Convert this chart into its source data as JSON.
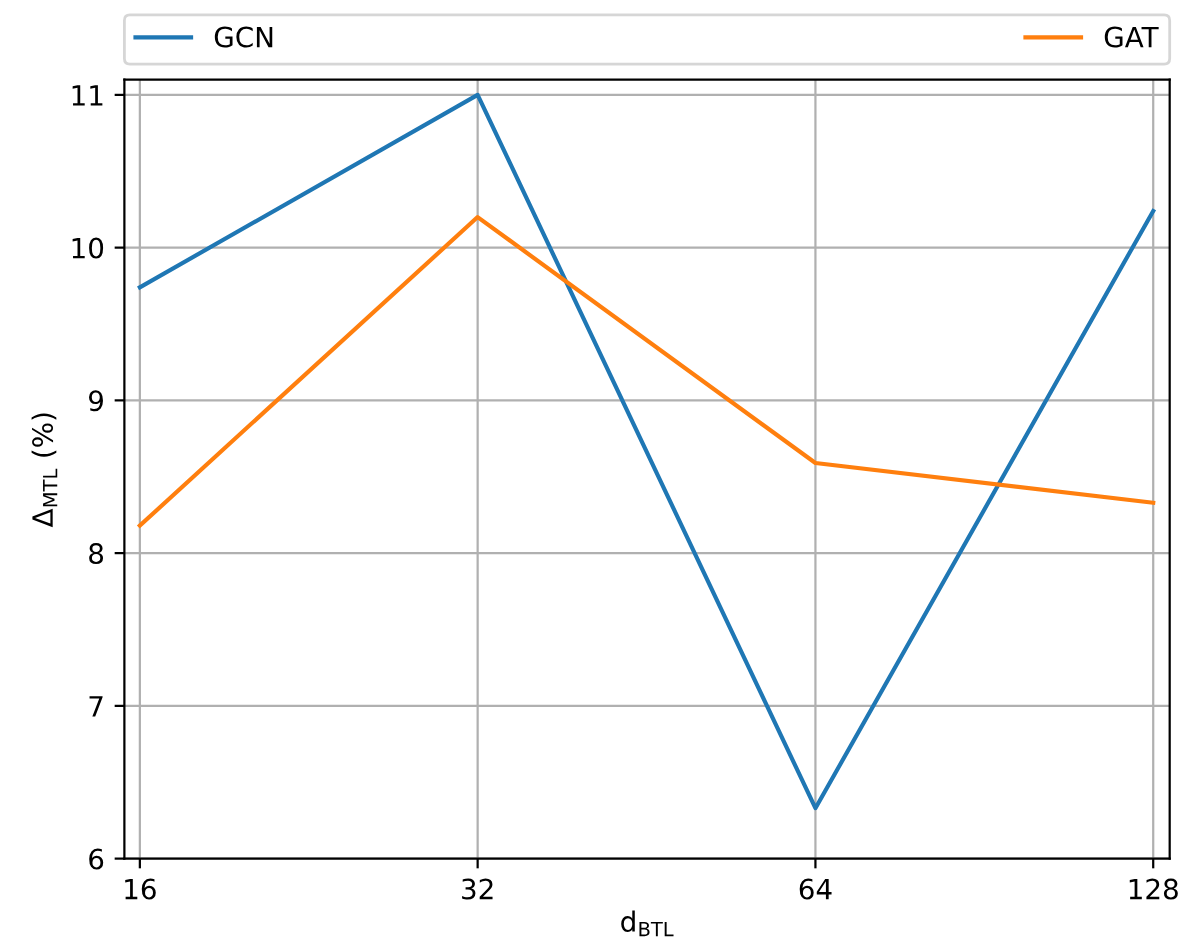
{
  "chart_data": {
    "type": "line",
    "xlabel": "d$_{BTL}$",
    "ylabel": "Δ$_{MTL}$ (%)",
    "x": [
      16,
      32,
      64,
      128
    ],
    "series": [
      {
        "name": "GCN",
        "color": "#1f77b4",
        "values": [
          9.74,
          11.0,
          6.33,
          10.24
        ]
      },
      {
        "name": "GAT",
        "color": "#ff7f0e",
        "values": [
          8.18,
          10.2,
          8.59,
          8.33
        ]
      }
    ],
    "log": "x",
    "xlim": [
      15.5,
      132.4
    ],
    "xticks": [
      16,
      32,
      64,
      128
    ],
    "ylim": [
      6,
      11.1
    ],
    "yticks": [
      6,
      7,
      8,
      9,
      10,
      11
    ],
    "grid": true,
    "legend": "top",
    "marker": "none",
    "line_style": "solid"
  }
}
